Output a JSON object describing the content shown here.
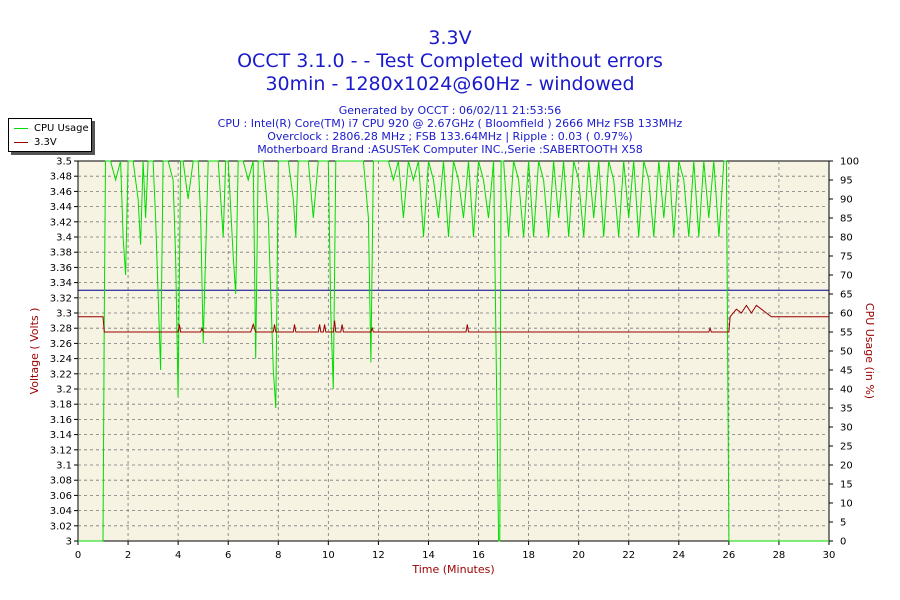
{
  "header": {
    "title_line1": "3.3V",
    "title_line2": "OCCT 3.1.0 -  - Test Completed without errors",
    "title_line3": "30min - 1280x1024@60Hz - windowed",
    "info_line1": "Generated by OCCT : 06/02/11 21:53:56",
    "info_line2": "CPU : Intel(R) Core(TM) i7 CPU 920 @ 2.67GHz ( Bloomfield ) 2666 MHz FSB 133MHz",
    "info_line3": "Overclock : 2806.28 MHz ; FSB 133.64MHz | Ripple : 0.03 ( 0.97%)",
    "info_line4": "Motherboard Brand :ASUSTeK Computer INC.,Serie :SABERTOOTH X58"
  },
  "colors": {
    "background": "#f7f3e3",
    "cpu": "#00dd00",
    "voltage": "#990000",
    "ref": "#00008b",
    "title": "#1a1acc",
    "ylabel": "#990000"
  },
  "chart_data": {
    "type": "line",
    "xlabel": "Time (Minutes)",
    "ylabel": "Voltage ( Volts )",
    "y2label": "CPU Usage (in %)",
    "xlim": [
      0,
      30
    ],
    "ylim": [
      3.0,
      3.5
    ],
    "y2lim": [
      0,
      100
    ],
    "x_ticks": [
      "0",
      "2",
      "4",
      "6",
      "8",
      "10",
      "12",
      "14",
      "16",
      "18",
      "20",
      "22",
      "24",
      "26",
      "28",
      "30"
    ],
    "y_ticks": [
      "3",
      "3.02",
      "3.04",
      "3.06",
      "3.08",
      "3.1",
      "3.12",
      "3.14",
      "3.16",
      "3.18",
      "3.2",
      "3.22",
      "3.24",
      "3.26",
      "3.28",
      "3.3",
      "3.32",
      "3.34",
      "3.36",
      "3.38",
      "3.4",
      "3.42",
      "3.44",
      "3.46",
      "3.48",
      "3.5"
    ],
    "y2_ticks": [
      "0",
      "5",
      "10",
      "15",
      "20",
      "25",
      "30",
      "35",
      "40",
      "45",
      "50",
      "55",
      "60",
      "65",
      "70",
      "75",
      "80",
      "85",
      "90",
      "95",
      "100"
    ],
    "grid": true,
    "legend_position": "top-left",
    "reference_line": 3.33,
    "series": [
      {
        "name": "CPU Usage",
        "axis": "right",
        "x": [
          0,
          0.9,
          1.0,
          1.05,
          1.1,
          1.3,
          1.5,
          1.7,
          1.8,
          1.9,
          2.0,
          2.2,
          2.4,
          2.5,
          2.6,
          2.7,
          2.8,
          3.0,
          3.1,
          3.2,
          3.3,
          3.4,
          3.6,
          3.8,
          3.9,
          4.0,
          4.1,
          4.2,
          4.4,
          4.6,
          4.8,
          4.9,
          5.0,
          5.2,
          5.4,
          5.6,
          5.8,
          5.9,
          6.0,
          6.2,
          6.3,
          6.4,
          6.6,
          6.8,
          7.0,
          7.1,
          7.2,
          7.4,
          7.6,
          7.8,
          7.9,
          8.0,
          8.2,
          8.4,
          8.6,
          8.7,
          8.8,
          9.0,
          9.2,
          9.4,
          9.6,
          9.8,
          10.0,
          10.1,
          10.2,
          10.3,
          10.4,
          10.6,
          10.8,
          11.0,
          11.2,
          11.4,
          11.6,
          11.7,
          11.8,
          12.0,
          12.2,
          12.4,
          12.6,
          12.8,
          13.0,
          13.2,
          13.4,
          13.6,
          13.8,
          14.0,
          14.2,
          14.4,
          14.6,
          14.8,
          15.0,
          15.2,
          15.4,
          15.6,
          15.8,
          16.0,
          16.2,
          16.4,
          16.6,
          16.8,
          16.85,
          16.9,
          17.0,
          17.2,
          17.4,
          17.6,
          17.8,
          18.0,
          18.2,
          18.4,
          18.6,
          18.8,
          19.0,
          19.2,
          19.4,
          19.6,
          19.8,
          20.0,
          20.2,
          20.4,
          20.6,
          20.8,
          21.0,
          21.2,
          21.4,
          21.6,
          21.8,
          22.0,
          22.2,
          22.4,
          22.6,
          22.8,
          23.0,
          23.2,
          23.4,
          23.6,
          23.8,
          24.0,
          24.2,
          24.4,
          24.6,
          24.8,
          25.0,
          25.2,
          25.4,
          25.6,
          25.8,
          25.9,
          26.0,
          26.05,
          26.1,
          27.0,
          28.0,
          30.0
        ],
        "values": [
          0,
          0,
          0,
          60,
          100,
          100,
          95,
          100,
          80,
          70,
          100,
          100,
          90,
          78,
          100,
          85,
          100,
          100,
          85,
          65,
          45,
          100,
          100,
          95,
          75,
          38,
          100,
          100,
          90,
          100,
          100,
          85,
          52,
          100,
          100,
          100,
          80,
          100,
          100,
          75,
          65,
          100,
          100,
          95,
          100,
          48,
          100,
          100,
          85,
          45,
          35,
          100,
          100,
          100,
          90,
          80,
          100,
          100,
          100,
          85,
          100,
          100,
          100,
          60,
          40,
          100,
          100,
          100,
          100,
          100,
          100,
          100,
          85,
          47,
          100,
          100,
          100,
          100,
          95,
          100,
          85,
          100,
          95,
          100,
          80,
          100,
          95,
          85,
          100,
          80,
          100,
          95,
          85,
          100,
          80,
          100,
          95,
          85,
          100,
          0,
          0,
          100,
          100,
          80,
          100,
          95,
          80,
          100,
          80,
          100,
          95,
          80,
          100,
          85,
          100,
          80,
          100,
          95,
          80,
          100,
          85,
          100,
          80,
          100,
          95,
          80,
          100,
          85,
          100,
          80,
          100,
          95,
          80,
          100,
          85,
          100,
          80,
          100,
          95,
          80,
          100,
          80,
          100,
          85,
          100,
          80,
          100,
          100,
          0,
          0,
          0,
          0,
          0,
          0
        ]
      },
      {
        "name": "3.3V",
        "axis": "left",
        "x": [
          0,
          1.0,
          1.05,
          4.0,
          4.05,
          4.1,
          4.9,
          4.95,
          5.0,
          6.9,
          7.0,
          7.1,
          7.8,
          7.85,
          7.9,
          8.6,
          8.65,
          8.7,
          9.6,
          9.65,
          9.7,
          9.8,
          9.85,
          9.9,
          10.2,
          10.25,
          10.3,
          10.5,
          10.55,
          10.6,
          11.7,
          11.75,
          11.8,
          15.5,
          15.55,
          15.6,
          25.2,
          25.25,
          25.3,
          26.0,
          26.05,
          26.3,
          26.5,
          26.7,
          26.9,
          27.1,
          27.3,
          27.5,
          27.7,
          28.0,
          30.0
        ],
        "values": [
          3.295,
          3.295,
          3.275,
          3.275,
          3.285,
          3.275,
          3.275,
          3.28,
          3.275,
          3.275,
          3.285,
          3.275,
          3.275,
          3.285,
          3.275,
          3.275,
          3.285,
          3.275,
          3.275,
          3.285,
          3.275,
          3.275,
          3.285,
          3.275,
          3.275,
          3.29,
          3.275,
          3.275,
          3.285,
          3.275,
          3.275,
          3.28,
          3.275,
          3.275,
          3.285,
          3.275,
          3.275,
          3.28,
          3.275,
          3.275,
          3.295,
          3.305,
          3.3,
          3.31,
          3.3,
          3.31,
          3.305,
          3.3,
          3.295,
          3.295,
          3.295
        ]
      }
    ]
  }
}
